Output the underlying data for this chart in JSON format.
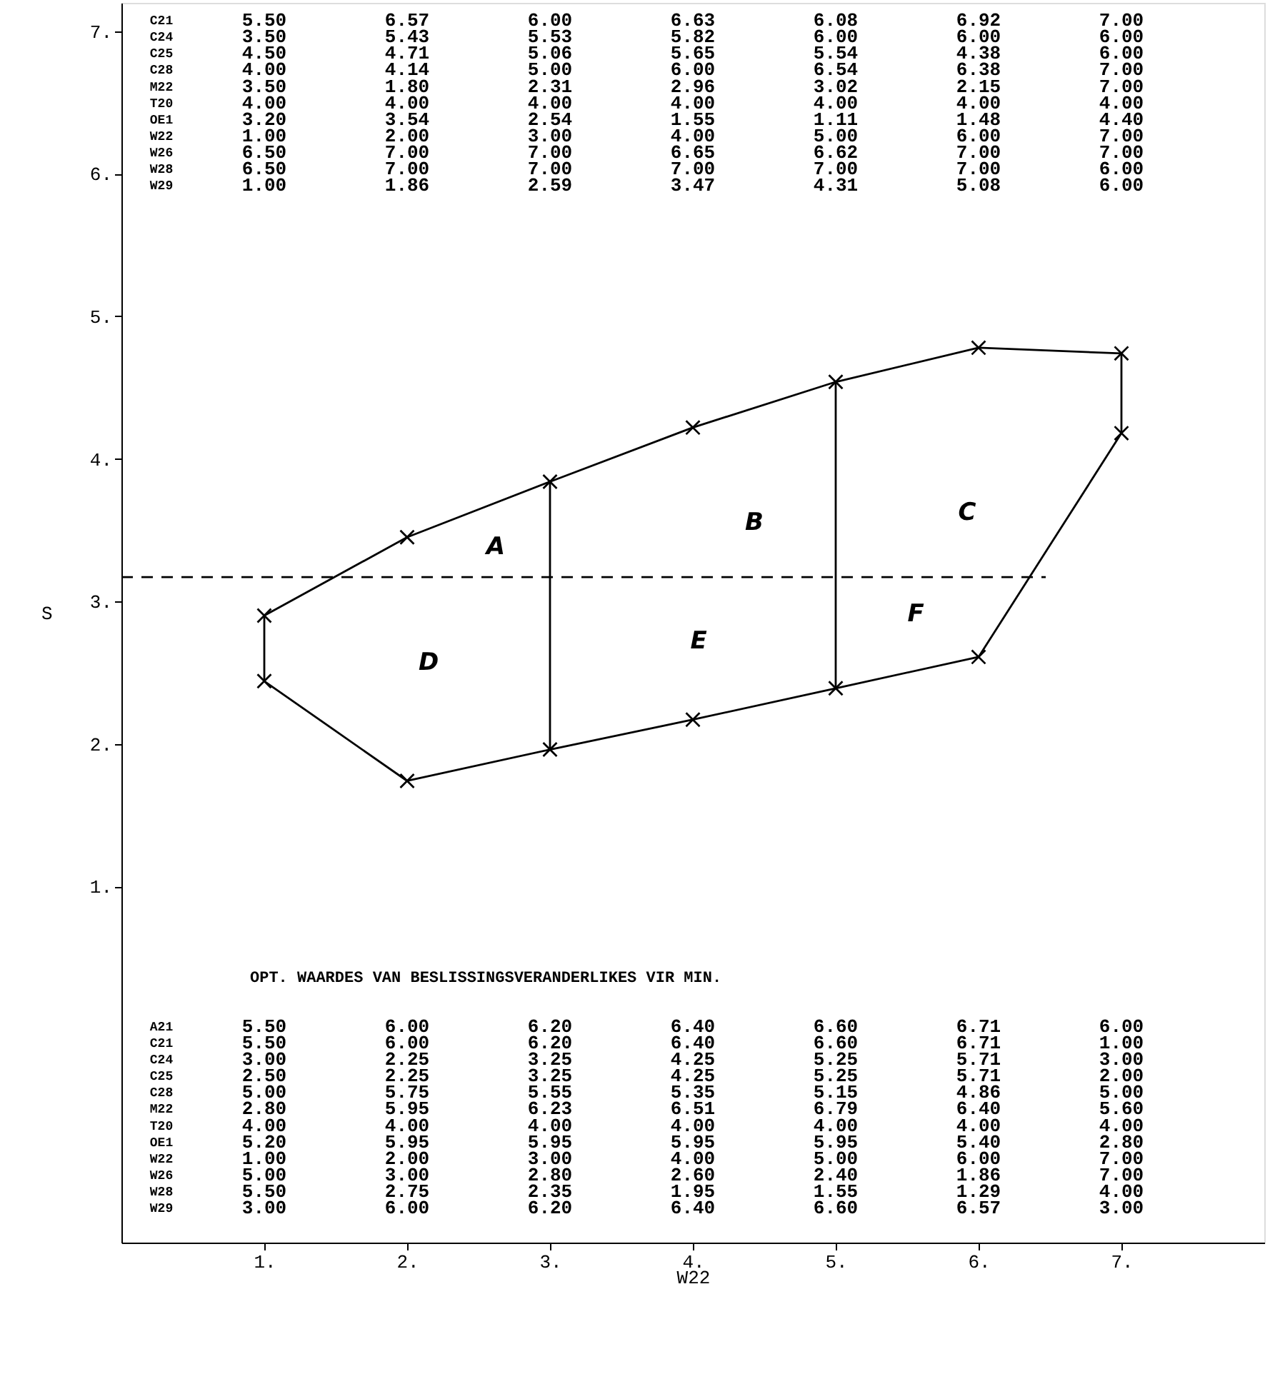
{
  "chart_data": {
    "type": "line",
    "xlabel": "W22",
    "ylabel": "S",
    "xlim": [
      0,
      8
    ],
    "ylim": [
      -1.5,
      7.2
    ],
    "xticks": [
      {
        "value": 1,
        "label": "1."
      },
      {
        "value": 2,
        "label": "2."
      },
      {
        "value": 3,
        "label": "3."
      },
      {
        "value": 4,
        "label": "4."
      },
      {
        "value": 5,
        "label": "5."
      },
      {
        "value": 6,
        "label": "6."
      },
      {
        "value": 7,
        "label": "7."
      }
    ],
    "yticks": [
      {
        "value": 1,
        "label": "1."
      },
      {
        "value": 2,
        "label": "2."
      },
      {
        "value": 3,
        "label": "3."
      },
      {
        "value": 4,
        "label": "4."
      },
      {
        "value": 5,
        "label": "5."
      },
      {
        "value": 6,
        "label": "6."
      },
      {
        "value": 7,
        "label": "7."
      }
    ],
    "grid": false,
    "marker": "cross",
    "line_style": "solid",
    "series": [
      {
        "color": "#000000",
        "x": [
          1,
          2,
          3,
          4,
          5,
          6,
          7
        ],
        "values": [
          2.9,
          3.45,
          3.84,
          4.22,
          4.54,
          4.78,
          4.74
        ]
      },
      {
        "color": "#000000",
        "x": [
          1,
          2,
          3,
          4,
          5,
          6,
          7
        ],
        "values": [
          2.44,
          1.74,
          1.96,
          2.17,
          2.39,
          2.61,
          4.18
        ]
      },
      {
        "color": "#000000",
        "x": [
          1,
          1
        ],
        "values": [
          2.44,
          2.9
        ],
        "marker": "none"
      },
      {
        "color": "#000000",
        "x": [
          7,
          7
        ],
        "values": [
          4.18,
          4.74
        ],
        "marker": "none"
      },
      {
        "color": "#000000",
        "x": [
          3,
          3
        ],
        "values": [
          1.96,
          3.84
        ],
        "marker": "none"
      },
      {
        "color": "#000000",
        "x": [
          5,
          5
        ],
        "values": [
          2.39,
          4.54
        ],
        "marker": "none"
      },
      {
        "color": "#000000",
        "x": [
          0,
          6.47
        ],
        "values": [
          3.17,
          3.17
        ],
        "marker": "none",
        "line_style": "dashed"
      }
    ],
    "annotations": [
      "A",
      "B",
      "C",
      "D",
      "E",
      "F",
      "C21 5.50 6.57 6.00 6.63 6.08 6.92 7.00",
      "C24 3.50 5.43 5.53 5.82 6.00 6.00 6.00",
      "C25 4.50 4.71 5.06 5.65 5.54 4.38 6.00",
      "C28 4.00 4.14 5.00 6.00 6.54 6.38 7.00",
      "M22 3.50 1.80 2.31 2.96 3.02 2.15 7.00",
      "T20 4.00 4.00 4.00 4.00 4.00 4.00 4.00",
      "OE1 3.20 3.54 2.54 1.55 1.11 1.48 4.40",
      "W22 1.00 2.00 3.00 4.00 5.00 6.00 7.00",
      "W26 6.50 7.00 7.00 6.65 6.62 7.00 7.00",
      "W28 6.50 7.00 7.00 7.00 7.00 7.00 6.00",
      "W29 1.00 1.86 2.59 3.47 4.31 5.08 6.00",
      "OPT. WAARDES VAN BESLISSINGSVERANDERLIKES VIR MIN.",
      "A21 5.50 6.00 6.20 6.40 6.60 6.71 6.00",
      "C21 5.50 6.00 6.20 6.40 6.60 6.71 1.00",
      "C24 3.00 2.25 3.25 4.25 5.25 5.71 3.00",
      "C25 2.50 2.25 3.25 4.25 5.25 5.71 2.00",
      "C28 5.00 5.75 5.55 5.35 5.15 4.86 5.00",
      "M22 2.80 5.95 6.23 6.51 6.79 6.40 5.60",
      "T20 4.00 4.00 4.00 4.00 4.00 4.00 4.00",
      "OE1 5.20 5.95 5.95 5.95 5.95 5.40 2.80",
      "W22 1.00 2.00 3.00 4.00 5.00 6.00 7.00",
      "W26 5.00 3.00 2.80 2.60 2.40 1.86 7.00",
      "W28 5.50 2.75 2.35 1.95 1.55 1.29 4.00",
      "W29 3.00 6.00 6.20 6.40 6.60 6.57 3.00"
    ]
  }
}
